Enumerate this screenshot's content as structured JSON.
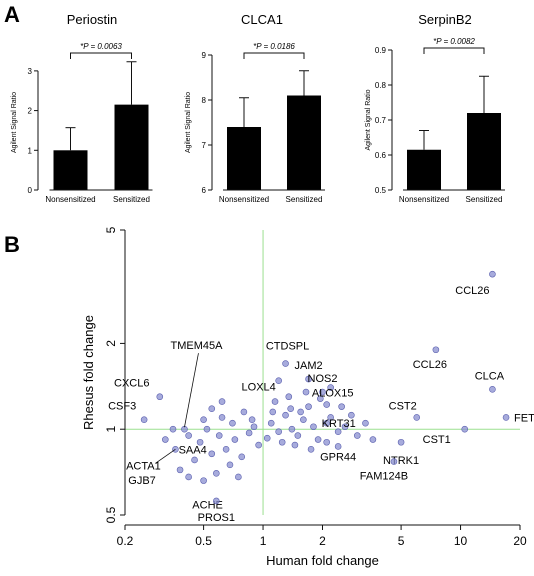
{
  "panel_a_label": "A",
  "panel_b_label": "B",
  "chart_data": [
    {
      "type": "bar",
      "title": "Periostin",
      "ylabel": "Agilent Signal Ratio",
      "categories": [
        "Nonsensitized",
        "Sensitized"
      ],
      "values": [
        1.0,
        2.15
      ],
      "errors": [
        0.57,
        1.08
      ],
      "ylim": [
        0,
        3.4
      ],
      "yticks": [
        0,
        1,
        2,
        3
      ],
      "significance": "*P = 0.0063"
    },
    {
      "type": "bar",
      "title": "CLCA1",
      "ylabel": "Agilent Signal Ratio",
      "categories": [
        "Nonsensitized",
        "Sensitized"
      ],
      "values": [
        7.4,
        8.1
      ],
      "errors": [
        0.65,
        0.55
      ],
      "ylim": [
        6,
        9
      ],
      "yticks": [
        6,
        7,
        8,
        9
      ],
      "significance": "*P = 0.0186"
    },
    {
      "type": "bar",
      "title": "SerpinB2",
      "ylabel": "Agilent Signal Ratio",
      "categories": [
        "Nonsensitized",
        "Sensitized"
      ],
      "values": [
        0.615,
        0.72
      ],
      "errors": [
        0.055,
        0.105
      ],
      "ylim": [
        0.5,
        0.9
      ],
      "yticks": [
        0.5,
        0.6,
        0.7,
        0.8,
        0.9
      ],
      "significance": "*P = 0.0082"
    },
    {
      "type": "scatter",
      "xlabel": "Human fold change",
      "ylabel": "Rhesus fold change",
      "xscale": "log",
      "yscale": "log",
      "xlim": [
        0.2,
        20
      ],
      "ylim": [
        0.5,
        5
      ],
      "xticks": [
        0.2,
        0.5,
        1,
        2,
        5,
        10,
        20
      ],
      "yticks": [
        0.5,
        1,
        2,
        5
      ],
      "reference_lines": {
        "x": 1,
        "y": 1,
        "color": "#9be08f"
      },
      "point_color": "#8a8fd0",
      "labeled_points": [
        {
          "label": "CCL26",
          "x": 14.5,
          "y": 3.5
        },
        {
          "label": "CCL26",
          "x": 7.5,
          "y": 1.9
        },
        {
          "label": "CLCA",
          "x": 14.5,
          "y": 1.38
        },
        {
          "label": "FETUB",
          "x": 17,
          "y": 1.1
        },
        {
          "label": "CST1",
          "x": 10.5,
          "y": 1.0
        },
        {
          "label": "CST2",
          "x": 6.0,
          "y": 1.1
        },
        {
          "label": "CTDSPL",
          "x": 1.3,
          "y": 1.7
        },
        {
          "label": "JAM2",
          "x": 1.7,
          "y": 1.5
        },
        {
          "label": "NOS2",
          "x": 2.0,
          "y": 1.35
        },
        {
          "label": "ALOX15",
          "x": 2.1,
          "y": 1.22
        },
        {
          "label": "LOXL4",
          "x": 1.2,
          "y": 1.48
        },
        {
          "label": "KRT31",
          "x": 2.1,
          "y": 1.05
        },
        {
          "label": "NTRK1",
          "x": 5.0,
          "y": 0.9
        },
        {
          "label": "GPR44",
          "x": 2.4,
          "y": 0.87
        },
        {
          "label": "FAM124B",
          "x": 4.6,
          "y": 0.77
        },
        {
          "label": "TMEM45A",
          "x": 0.4,
          "y": 1.0
        },
        {
          "label": "CXCL6",
          "x": 0.3,
          "y": 1.3
        },
        {
          "label": "CSF3",
          "x": 0.25,
          "y": 1.08
        },
        {
          "label": "SAA4",
          "x": 0.42,
          "y": 0.95
        },
        {
          "label": "ACTA1",
          "x": 0.36,
          "y": 0.85
        },
        {
          "label": "GJB7",
          "x": 0.38,
          "y": 0.72
        },
        {
          "label": "ACHE",
          "x": 0.5,
          "y": 0.66
        },
        {
          "label": "PROS1",
          "x": 0.58,
          "y": 0.56
        }
      ],
      "unlabeled_points": [
        {
          "x": 0.55,
          "y": 1.18
        },
        {
          "x": 0.62,
          "y": 1.1
        },
        {
          "x": 0.7,
          "y": 1.05
        },
        {
          "x": 0.8,
          "y": 1.15
        },
        {
          "x": 0.9,
          "y": 1.02
        },
        {
          "x": 0.52,
          "y": 1.0
        },
        {
          "x": 0.6,
          "y": 0.95
        },
        {
          "x": 0.72,
          "y": 0.92
        },
        {
          "x": 0.85,
          "y": 0.97
        },
        {
          "x": 0.48,
          "y": 0.9
        },
        {
          "x": 0.65,
          "y": 0.85
        },
        {
          "x": 0.78,
          "y": 0.8
        },
        {
          "x": 0.55,
          "y": 0.82
        },
        {
          "x": 0.45,
          "y": 0.78
        },
        {
          "x": 0.68,
          "y": 0.75
        },
        {
          "x": 0.58,
          "y": 0.7
        },
        {
          "x": 0.75,
          "y": 0.68
        },
        {
          "x": 0.42,
          "y": 0.68
        },
        {
          "x": 0.95,
          "y": 0.88
        },
        {
          "x": 0.5,
          "y": 1.08
        },
        {
          "x": 0.35,
          "y": 1.0
        },
        {
          "x": 0.32,
          "y": 0.92
        },
        {
          "x": 0.88,
          "y": 1.08
        },
        {
          "x": 0.62,
          "y": 1.25
        },
        {
          "x": 1.1,
          "y": 1.05
        },
        {
          "x": 1.2,
          "y": 0.98
        },
        {
          "x": 1.3,
          "y": 1.12
        },
        {
          "x": 1.4,
          "y": 1.0
        },
        {
          "x": 1.5,
          "y": 0.95
        },
        {
          "x": 1.6,
          "y": 1.08
        },
        {
          "x": 1.7,
          "y": 1.2
        },
        {
          "x": 1.8,
          "y": 1.02
        },
        {
          "x": 1.9,
          "y": 0.92
        },
        {
          "x": 1.15,
          "y": 1.25
        },
        {
          "x": 1.35,
          "y": 1.3
        },
        {
          "x": 1.25,
          "y": 0.9
        },
        {
          "x": 1.45,
          "y": 0.88
        },
        {
          "x": 1.55,
          "y": 1.15
        },
        {
          "x": 2.2,
          "y": 1.1
        },
        {
          "x": 2.4,
          "y": 0.98
        },
        {
          "x": 2.6,
          "y": 1.02
        },
        {
          "x": 2.8,
          "y": 1.12
        },
        {
          "x": 3.0,
          "y": 0.95
        },
        {
          "x": 3.3,
          "y": 1.05
        },
        {
          "x": 2.2,
          "y": 1.4
        },
        {
          "x": 1.05,
          "y": 0.93
        },
        {
          "x": 1.12,
          "y": 1.15
        },
        {
          "x": 1.65,
          "y": 1.35
        },
        {
          "x": 1.75,
          "y": 0.85
        },
        {
          "x": 2.1,
          "y": 0.9
        },
        {
          "x": 3.6,
          "y": 0.92
        },
        {
          "x": 1.95,
          "y": 1.28
        },
        {
          "x": 1.38,
          "y": 1.18
        },
        {
          "x": 2.5,
          "y": 1.2
        }
      ]
    }
  ]
}
